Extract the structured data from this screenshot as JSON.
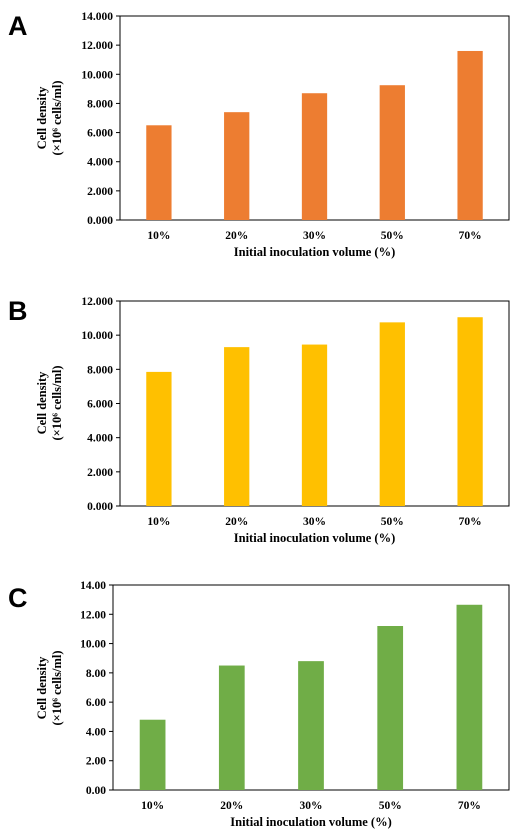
{
  "chart_data": [
    {
      "type": "bar",
      "panel_label": "A",
      "categories": [
        "10%",
        "20%",
        "30%",
        "50%",
        "70%"
      ],
      "values": [
        6.5,
        7.4,
        8.7,
        9.25,
        11.6
      ],
      "y_tick_labels": [
        "0.000",
        "2.000",
        "4.000",
        "6.000",
        "8.000",
        "10.000",
        "12.000",
        "14.000"
      ],
      "ylim": [
        0,
        14
      ],
      "xlabel": "Initial inoculation volume (%)",
      "ylabel_line1": "Cell density",
      "ylabel_line2": "(×10⁶ cells/ml)",
      "bar_color": "#ED7D31",
      "grid": false,
      "legend": "none"
    },
    {
      "type": "bar",
      "panel_label": "B",
      "categories": [
        "10%",
        "20%",
        "30%",
        "50%",
        "70%"
      ],
      "values": [
        7.85,
        9.3,
        9.45,
        10.75,
        11.05
      ],
      "y_tick_labels": [
        "0.000",
        "2.000",
        "4.000",
        "6.000",
        "8.000",
        "10.000",
        "12.000"
      ],
      "ylim": [
        0,
        12
      ],
      "xlabel": "Initial inoculation volume (%)",
      "ylabel_line1": "Cell density",
      "ylabel_line2": "(×10⁶ cells/ml)",
      "bar_color": "#FFC000",
      "grid": false,
      "legend": "none"
    },
    {
      "type": "bar",
      "panel_label": "C",
      "categories": [
        "10%",
        "20%",
        "30%",
        "50%",
        "70%"
      ],
      "values": [
        4.8,
        8.5,
        8.8,
        11.2,
        12.65
      ],
      "y_tick_labels": [
        "0.00",
        "2.00",
        "4.00",
        "6.00",
        "8.00",
        "10.00",
        "12.00",
        "14.00"
      ],
      "ylim": [
        0,
        14
      ],
      "xlabel": "Initial inoculation volume (%)",
      "ylabel_line1": "Cell density",
      "ylabel_line2": "(×10⁶ cells/ml)",
      "bar_color": "#70AD47",
      "grid": false,
      "legend": "none"
    }
  ]
}
